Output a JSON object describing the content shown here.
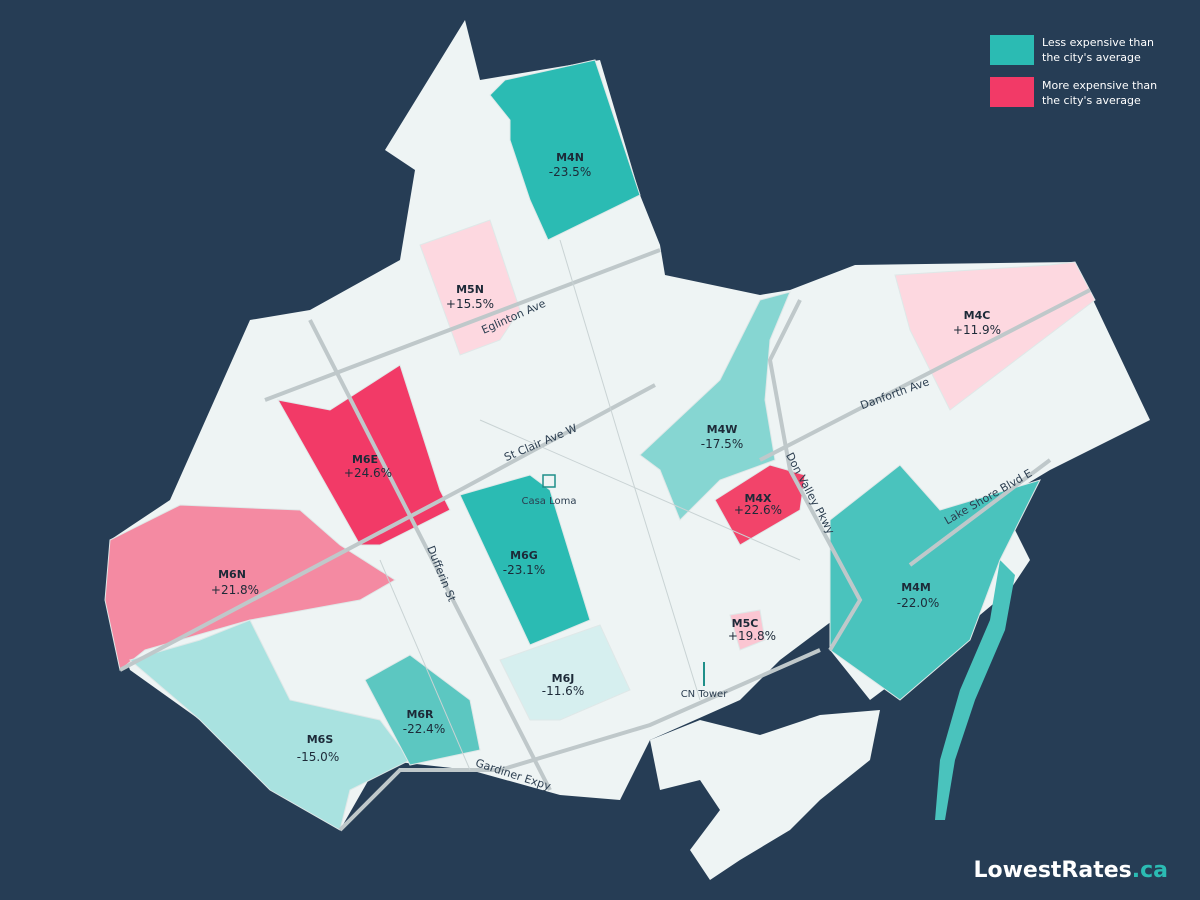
{
  "legend": [
    {
      "lines": [
        "Less expensive than",
        "the city's average"
      ],
      "color": "#2bbbb3"
    },
    {
      "lines": [
        "More expensive than",
        "the city's average"
      ],
      "color": "#f23a67"
    }
  ],
  "regions": [
    {
      "code": "M4N",
      "change": "-23.5%",
      "color": "#2bbbb3"
    },
    {
      "code": "M5N",
      "change": "+15.5%",
      "color": "#fdd8e0"
    },
    {
      "code": "M4C",
      "change": "+11.9%",
      "color": "#fdd8e0"
    },
    {
      "code": "M4W",
      "change": "-17.5%",
      "color": "#86d6d2"
    },
    {
      "code": "M4X",
      "change": "+22.6%",
      "color": "#f2446a"
    },
    {
      "code": "M6E",
      "change": "+24.6%",
      "color": "#f23a67"
    },
    {
      "code": "M6N",
      "change": "+21.8%",
      "color": "#f48aa2"
    },
    {
      "code": "M6G",
      "change": "-23.1%",
      "color": "#2bbbb3"
    },
    {
      "code": "M6J",
      "change": "-11.6%",
      "color": "#d6efef"
    },
    {
      "code": "M5C",
      "change": "+19.8%",
      "color": "#fbc6d2"
    },
    {
      "code": "M4M",
      "change": "-22.0%",
      "color": "#4ac3bd"
    },
    {
      "code": "M6S",
      "change": "-15.0%",
      "color": "#a9e2e0"
    },
    {
      "code": "M6R",
      "change": "-22.4%",
      "color": "#5cc7c1"
    }
  ],
  "streets": [
    "Eglinton Ave",
    "St Clair Ave W",
    "Danforth Ave",
    "Dufferin St",
    "Don Valley Pkwy",
    "Lake Shore Blvd E",
    "Gardiner Expy"
  ],
  "landmarks": [
    "Casa Loma",
    "CN Tower"
  ],
  "brand": {
    "name": "LowestRates",
    "suffix": ".ca"
  }
}
